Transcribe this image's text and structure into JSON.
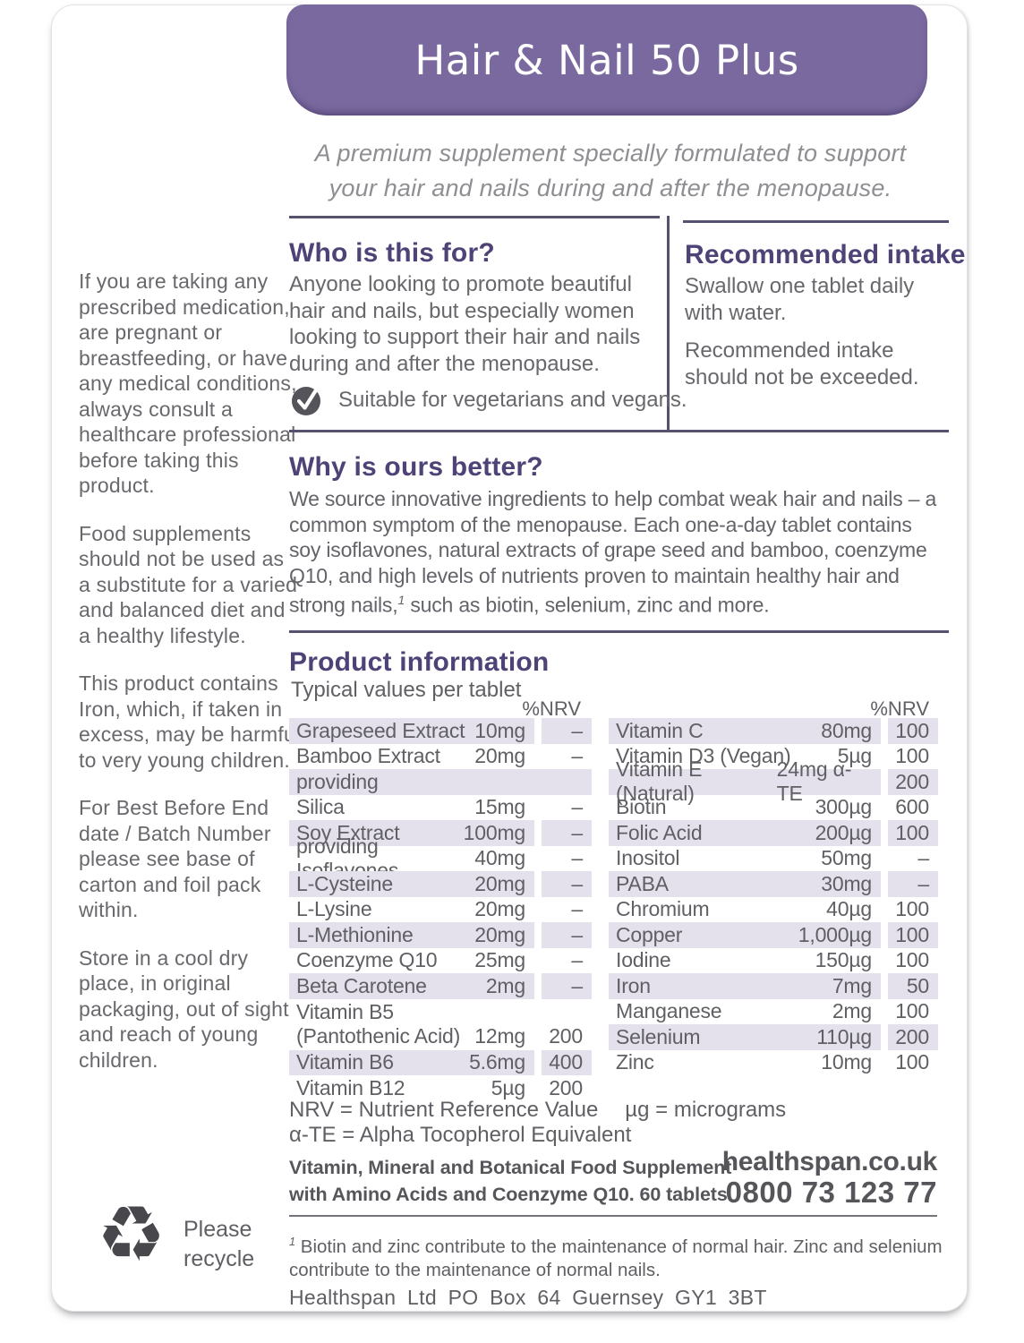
{
  "banner": {
    "title": "Hair & Nail 50 Plus",
    "color": "#79699f"
  },
  "tagline": "A premium supplement specially formulated to support your hair and nails during and after the menopause.",
  "sidebar": {
    "paragraphs": [
      "If you are taking any prescribed medication, are pregnant or breastfeeding, or have any medical conditions, always consult a healthcare professional before taking this product.",
      "Food supplements should not be used as a substitute for a varied and balanced diet and a healthy lifestyle.",
      "This product contains Iron, which, if taken in excess, may be harmful to very young children.",
      "For Best Before End date / Batch Number please see base of carton and foil pack within.",
      "Store in a cool dry place, in original packaging, out of sight and reach of young children."
    ]
  },
  "who": {
    "heading": "Who is this for?",
    "body": "Anyone looking to promote beautiful hair and nails, but especially women looking to support their hair and nails during and after the menopause.",
    "badge": "Suitable for vegetarians and vegans."
  },
  "intake": {
    "heading": "Recommended intake",
    "paragraph1": "Swallow one tablet daily with water.",
    "paragraph2": "Recommended intake should not be exceeded."
  },
  "why": {
    "heading": "Why is ours better?",
    "body_before_sup": "We source innovative ingredients to help combat weak hair and nails – a common symptom of the menopause. Each one-a-day tablet contains soy isoflavones, natural extracts of grape seed and bamboo, coenzyme Q10, and high levels of nutrients proven to maintain healthy hair and strong nails,",
    "sup": "1",
    "body_after_sup": " such as biotin, selenium, zinc and more."
  },
  "product": {
    "heading": "Product information",
    "subheading": "Typical values per tablet",
    "nrv_header": "%NRV",
    "row_shade_color": "#e4e0ec",
    "left_rows": [
      {
        "name": "Grapeseed Extract",
        "amount": "10mg",
        "nrv": "–"
      },
      {
        "name": "Bamboo Extract",
        "amount": "20mg",
        "nrv": "–"
      },
      {
        "name": "providing",
        "amount": "",
        "nrv": "",
        "span": true
      },
      {
        "name": "Silica",
        "amount": "15mg",
        "nrv": "–"
      },
      {
        "name": "Soy Extract",
        "amount": "100mg",
        "nrv": "–"
      },
      {
        "name": "providing Isoflavones",
        "amount": "40mg",
        "nrv": "–"
      },
      {
        "name": "L-Cysteine",
        "amount": "20mg",
        "nrv": "–"
      },
      {
        "name": "L-Lysine",
        "amount": "20mg",
        "nrv": "–"
      },
      {
        "name": "L-Methionine",
        "amount": "20mg",
        "nrv": "–"
      },
      {
        "name": "Coenzyme Q10",
        "amount": "25mg",
        "nrv": "–"
      },
      {
        "name": "Beta Carotene",
        "amount": "2mg",
        "nrv": "–"
      },
      {
        "name": "Vitamin B5",
        "name2": "(Pantothenic Acid)",
        "amount": "12mg",
        "nrv": "200"
      },
      {
        "name": "Vitamin B6",
        "amount": "5.6mg",
        "nrv": "400"
      },
      {
        "name": "Vitamin B12",
        "amount": "5µg",
        "nrv": "200"
      }
    ],
    "right_rows": [
      {
        "name": "Vitamin C",
        "amount": "80mg",
        "nrv": "100"
      },
      {
        "name": "Vitamin D3 (Vegan)",
        "amount": "5µg",
        "nrv": "100"
      },
      {
        "name": "Vitamin E (Natural)",
        "amount": "24mg α-TE",
        "nrv": "200"
      },
      {
        "name": "Biotin",
        "amount": "300µg",
        "nrv": "600"
      },
      {
        "name": "Folic Acid",
        "amount": "200µg",
        "nrv": "100"
      },
      {
        "name": "Inositol",
        "amount": "50mg",
        "nrv": "–"
      },
      {
        "name": "PABA",
        "amount": "30mg",
        "nrv": "–"
      },
      {
        "name": "Chromium",
        "amount": "40µg",
        "nrv": "100"
      },
      {
        "name": "Copper",
        "amount": "1,000µg",
        "nrv": "100"
      },
      {
        "name": "Iodine",
        "amount": "150µg",
        "nrv": "100"
      },
      {
        "name": "Iron",
        "amount": "7mg",
        "nrv": "50"
      },
      {
        "name": "Manganese",
        "amount": "2mg",
        "nrv": "100"
      },
      {
        "name": "Selenium",
        "amount": "110µg",
        "nrv": "200"
      },
      {
        "name": "Zinc",
        "amount": "10mg",
        "nrv": "100"
      }
    ]
  },
  "notes": {
    "nrv_note": "NRV = Nutrient Reference Value",
    "ug_note": "µg = micrograms",
    "ate_note": "α-TE = Alpha Tocopherol Equivalent"
  },
  "supplement": {
    "line1": "Vitamin, Mineral and Botanical Food Supplement",
    "line2": "with Amino Acids and Coenzyme Q10. 60 tablets."
  },
  "contact": {
    "website": "healthspan.co.uk",
    "phone": "0800 73 123 77"
  },
  "recycle": {
    "label": "Please recycle",
    "icon": "recycle-icon",
    "symbol": "♻"
  },
  "badge_icon": "check-icon",
  "footnote": {
    "sup": "1",
    "text": " Biotin and zinc contribute to the maintenance of normal hair. Zinc and selenium contribute to the maintenance of normal nails."
  },
  "address": "Healthspan Ltd PO Box 64 Guernsey GY1 3BT"
}
